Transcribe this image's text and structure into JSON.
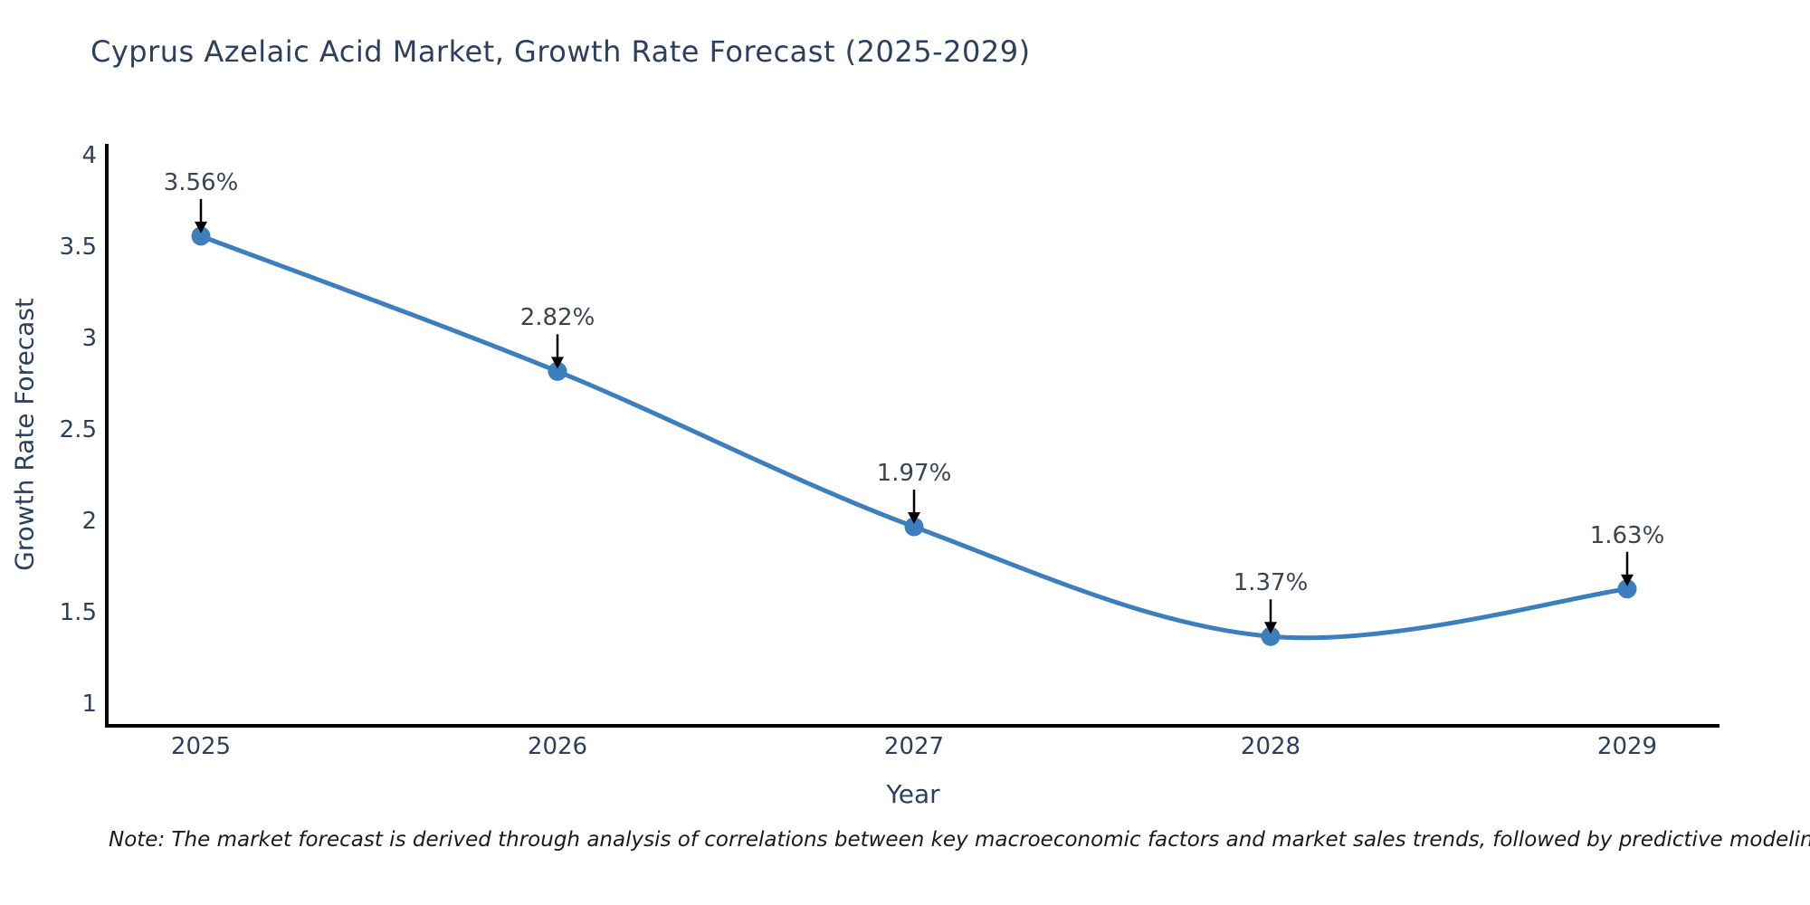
{
  "title": "Cyprus Azelaic Acid Market, Growth Rate Forecast (2025-2029)",
  "note": "Note: The market forecast is derived through analysis of correlations between key macroeconomic factors and market sales trends, followed by predictive modeling to project future sales",
  "chart_data": {
    "type": "line",
    "title": "Cyprus Azelaic Acid Market, Growth Rate Forecast (2025-2029)",
    "xlabel": "Year",
    "ylabel": "Growth Rate Forecast",
    "x": [
      2025,
      2026,
      2027,
      2028,
      2029
    ],
    "y": [
      3.56,
      2.82,
      1.97,
      1.37,
      1.63
    ],
    "point_labels": [
      "3.56%",
      "2.82%",
      "1.97%",
      "1.37%",
      "1.63%"
    ],
    "xticklabels": [
      "2025",
      "2026",
      "2027",
      "2028",
      "2029"
    ],
    "yticks": [
      4,
      3.5,
      3,
      2.5,
      2,
      1.5,
      1
    ],
    "yticklabels": [
      "4",
      "3.5",
      "3",
      "2.5",
      "2",
      "1.5",
      "1"
    ],
    "ylim": [
      0.88,
      4.06
    ],
    "grid": false,
    "legend": "none",
    "line_shape": "spline",
    "colors": {
      "line": "#3d7ebd",
      "marker": "#3d7ebd",
      "axis": "#000000",
      "text": "#2d3f5e",
      "annotation_text": "#3b4452",
      "arrow": "#000000",
      "note_text": "#1a1a1a",
      "background": "#ffffff"
    }
  }
}
